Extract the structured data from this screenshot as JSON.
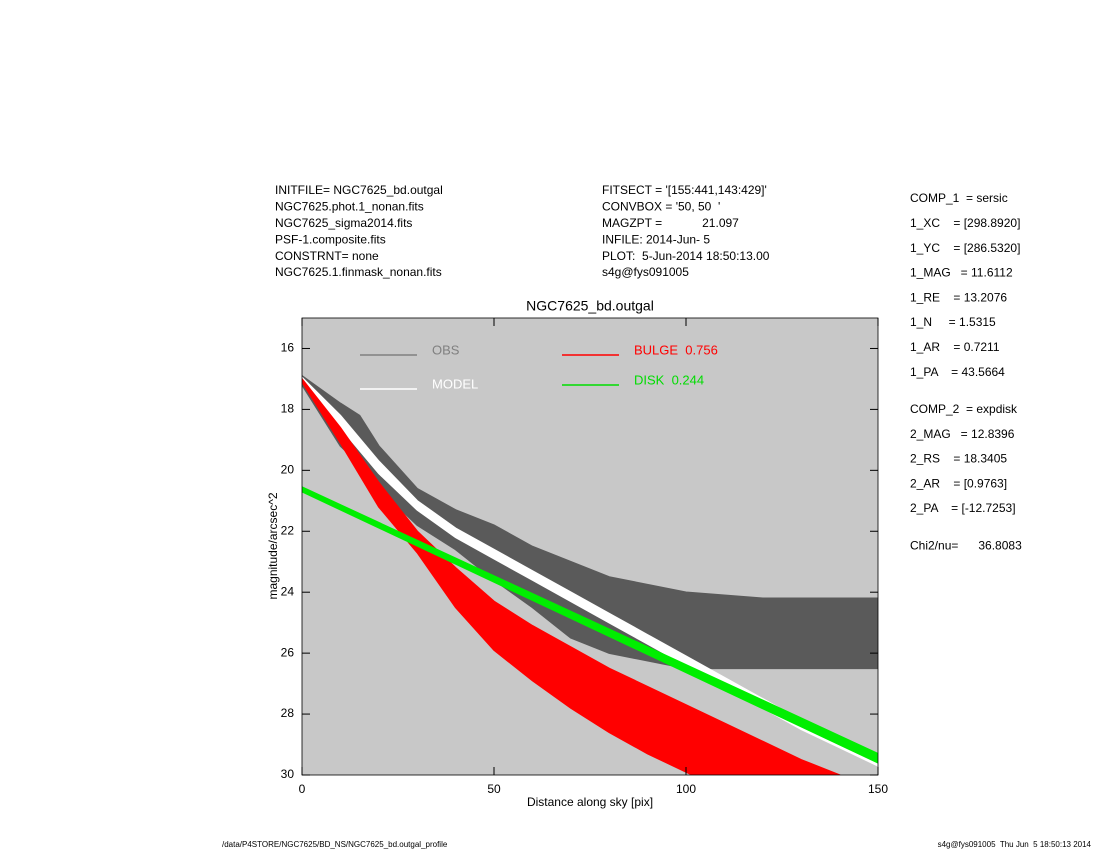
{
  "header": {
    "left": [
      "INITFILE= NGC7625_bd.outgal",
      "NGC7625.phot.1_nonan.fits",
      "NGC7625_sigma2014.fits",
      "PSF-1.composite.fits",
      "CONSTRNT= none",
      "NGC7625.1.finmask_nonan.fits"
    ],
    "middle": [
      "FITSECT = '[155:441,143:429]'",
      "CONVBOX = '50, 50  '",
      "MAGZPT =            21.097",
      "INFILE: 2014-Jun- 5",
      "PLOT:  5-Jun-2014 18:50:13.00",
      "s4g@fys091005"
    ]
  },
  "params": [
    [
      "COMP_1  = sersic",
      "1_XC    = [298.8920]",
      "1_YC    = [286.5320]",
      "1_MAG   = 11.6112",
      "1_RE    = 13.2076",
      "1_N     = 1.5315",
      "1_AR    = 0.7211",
      "1_PA    = 43.5664"
    ],
    [
      "COMP_2  = expdisk",
      "2_MAG   = 12.8396",
      "2_RS    = 18.3405",
      "2_AR    = [0.9763]",
      "2_PA    = [-12.7253]"
    ],
    [
      "Chi2/nu=      36.8083"
    ]
  ],
  "footer": {
    "left": "/data/P4STORE/NGC7625/BD_NS/NGC7625_bd.outgal_profile",
    "right": "s4g@fys091005  Thu Jun  5 18:50:13 2014"
  },
  "chart_data": {
    "type": "band",
    "title": "NGC7625_bd.outgal",
    "x_label": "Distance along sky [pix]",
    "y_label": "magnitude/arcsec^2",
    "xlim": [
      0,
      150
    ],
    "xticks": [
      0,
      50,
      100,
      150
    ],
    "ylim": [
      30,
      15
    ],
    "yticks": [
      16,
      18,
      20,
      22,
      24,
      26,
      28,
      30
    ],
    "background": "#c8c8c8",
    "series": [
      {
        "name": "OBS",
        "color": "#5a5a5a",
        "legend_color": "#808080",
        "x": [
          0,
          10,
          15,
          20,
          30,
          40,
          50,
          60,
          70,
          80,
          100,
          120,
          150
        ],
        "values": [
          16.9,
          17.8,
          18.2,
          19.2,
          20.6,
          21.3,
          21.8,
          22.5,
          23.0,
          23.5,
          24.0,
          24.2,
          24.2
        ],
        "values_low": [
          17.2,
          19.2,
          19.8,
          20.6,
          21.8,
          22.6,
          23.6,
          24.5,
          25.5,
          26.0,
          26.5,
          26.5,
          26.5
        ]
      },
      {
        "name": "MODEL",
        "color": "#ffffff",
        "legend_color": "#ffffff",
        "x": [
          0,
          10,
          20,
          30,
          40,
          50,
          60,
          70,
          80,
          90,
          100,
          110,
          120,
          130,
          140,
          150
        ],
        "values": [
          16.95,
          18.2,
          19.7,
          21.0,
          21.9,
          22.6,
          23.3,
          24.0,
          24.7,
          25.4,
          26.1,
          26.8,
          27.5,
          28.2,
          28.8,
          29.4
        ],
        "values_low": [
          17.1,
          18.6,
          20.1,
          21.3,
          22.2,
          22.9,
          23.6,
          24.3,
          25.0,
          25.7,
          26.4,
          27.1,
          27.8,
          28.5,
          29.1,
          29.7
        ]
      },
      {
        "name": "BULGE  0.756",
        "color": "#ff0000",
        "legend_color": "#ff0000",
        "x": [
          0,
          10,
          20,
          30,
          40,
          50,
          60,
          70,
          80,
          90,
          100,
          110,
          120,
          130,
          140
        ],
        "values": [
          17.0,
          18.6,
          20.4,
          22.0,
          23.2,
          24.3,
          25.1,
          25.8,
          26.5,
          27.1,
          27.7,
          28.3,
          28.9,
          29.5,
          30.0
        ],
        "values_low": [
          17.1,
          19.1,
          21.2,
          22.7,
          24.5,
          25.9,
          26.9,
          27.8,
          28.6,
          29.3,
          29.9,
          30.5,
          31.0,
          31.5,
          32.0
        ]
      },
      {
        "name": "DISK  0.244",
        "color": "#00ee00",
        "legend_color": "#00dd00",
        "x": [
          0,
          150
        ],
        "values": [
          20.55,
          29.3
        ],
        "values_low": [
          20.7,
          29.6
        ]
      }
    ]
  }
}
